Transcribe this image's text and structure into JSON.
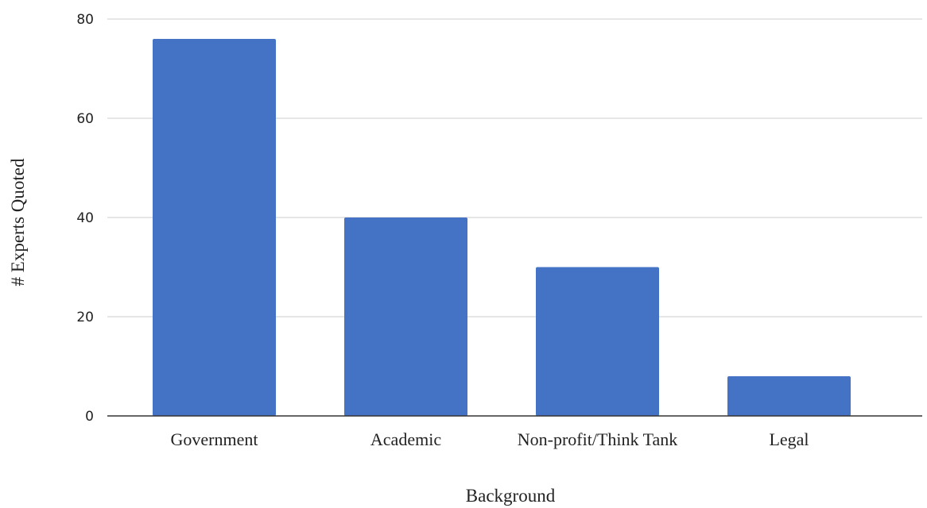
{
  "chart_data": {
    "type": "bar",
    "title": "",
    "xlabel": "Background",
    "ylabel": "# Experts Quoted",
    "categories": [
      "Government",
      "Academic",
      "Non-profit/Think Tank",
      "Legal"
    ],
    "series": [
      {
        "values": [
          76,
          40,
          30,
          8
        ]
      }
    ],
    "ylim": [
      0,
      80
    ],
    "yticks": [
      "0",
      "20",
      "40",
      "60",
      "80"
    ],
    "grid": true,
    "legend": "none",
    "colors": {
      "bar": "#4472c4",
      "grid": "#cccccc",
      "baseline": "#333333"
    }
  }
}
